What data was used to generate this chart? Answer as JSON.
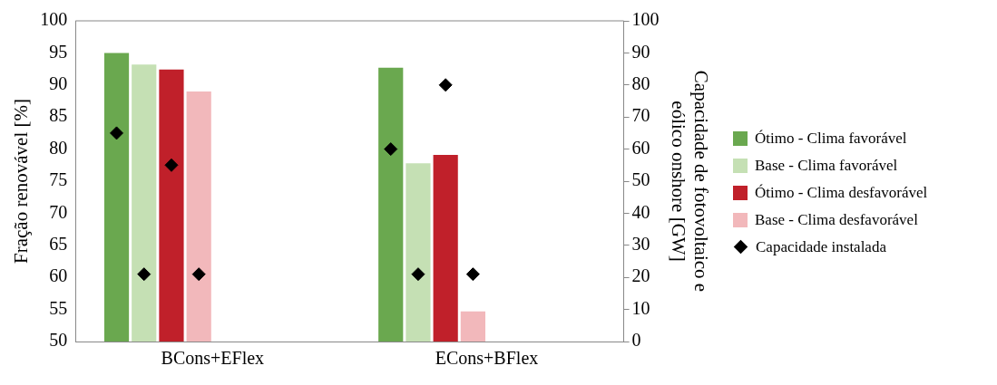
{
  "chart_data": {
    "type": "bar",
    "categories": [
      "BCons+EFlex",
      "ECons+BFlex"
    ],
    "series": [
      {
        "name": "Ótimo - Clima favorável",
        "color": "#6aa84f",
        "values": [
          95,
          92.7
        ]
      },
      {
        "name": "Base - Clima favorável",
        "color": "#c5e0b4",
        "values": [
          93.2,
          77.8
        ]
      },
      {
        "name": "Ótimo - Clima desfavorável",
        "color": "#c0202a",
        "values": [
          92.4,
          79.1
        ]
      },
      {
        "name": "Base - Clima desfavorável",
        "color": "#f2b8bb",
        "values": [
          89,
          54.7
        ]
      },
      {
        "name": "Capacidade instalada",
        "type": "scatter",
        "axis": "y2",
        "color": "#000000",
        "x": [
          "BCons+EFlex",
          "ECons+BFlex"
        ],
        "values": [
          65,
          60
        ]
      },
      {
        "type": "scatter",
        "axis": "y2",
        "color": "#000000",
        "x": [
          "BCons+EFlex",
          "ECons+BFlex"
        ],
        "values": [
          21,
          21
        ]
      },
      {
        "type": "scatter",
        "axis": "y2",
        "color": "#000000",
        "x": [
          "BCons+EFlex",
          "ECons+BFlex"
        ],
        "values": [
          55,
          80
        ]
      },
      {
        "type": "scatter",
        "axis": "y2",
        "color": "#000000",
        "x": [
          "BCons+EFlex",
          "ECons+BFlex"
        ],
        "values": [
          21,
          21
        ]
      }
    ],
    "ylabel": "Fração renovável [%]",
    "y2label": "Capacidade de fotovoltaico e eólico onshore [GW]",
    "ylim": [
      50,
      100
    ],
    "yticks": [
      50,
      55,
      60,
      65,
      70,
      75,
      80,
      85,
      90,
      95,
      100
    ],
    "y2lim": [
      0,
      100
    ],
    "y2ticks": [
      0,
      10,
      20,
      30,
      40,
      50,
      60,
      70,
      80,
      90,
      100
    ],
    "grid": false,
    "legend": "right",
    "marker": "diamond"
  }
}
